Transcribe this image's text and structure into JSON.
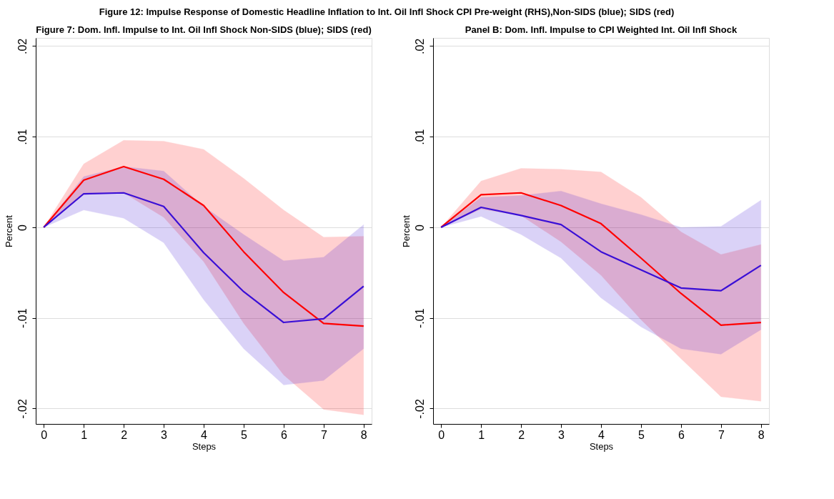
{
  "chart_data": [
    {
      "type": "line",
      "title": "Figure 7: Dom. Infl. Impulse to Int. Oil Infl Shock Non-SIDS (blue); SIDS (red)",
      "annotations": [
        "Figure 12: Impulse Response of Domestic Headline Inflation to Int. Oil Infl Shock CPI Pre-weight (RHS),Non-SIDS (blue); SIDS (red)"
      ],
      "xlabel": "Steps",
      "ylabel": "Percent",
      "x": [
        0,
        1,
        2,
        3,
        4,
        5,
        6,
        7,
        8
      ],
      "xlim": [
        -0.2,
        8.2
      ],
      "xticks": [
        0,
        1,
        2,
        3,
        4,
        5,
        6,
        7,
        8
      ],
      "ylim": [
        -0.0217,
        0.0209
      ],
      "yticks": [
        {
          "value": -0.02,
          "label": "-.02"
        },
        {
          "value": -0.01,
          "label": "-.01"
        },
        {
          "value": 0,
          "label": "0"
        },
        {
          "value": 0.01,
          "label": ".01"
        },
        {
          "value": 0.02,
          "label": ".02"
        }
      ],
      "grid": "y",
      "legend": false,
      "series": [
        {
          "color": "#ff0000",
          "values": [
            0,
            0.0052,
            0.0067,
            0.0053,
            0.0024,
            -0.0027,
            -0.0072,
            -0.0106,
            -0.0109
          ],
          "lower": [
            0,
            0.0036,
            0.0038,
            0.0011,
            -0.0038,
            -0.0106,
            -0.0163,
            -0.0201,
            -0.0207
          ],
          "upper": [
            0,
            0.007,
            0.0096,
            0.0095,
            0.0086,
            0.0054,
            0.0019,
            -0.0011,
            -0.001
          ]
        },
        {
          "color": "#3a0fd6",
          "values": [
            0,
            0.0037,
            0.0038,
            0.0023,
            -0.0028,
            -0.0071,
            -0.0105,
            -0.0101,
            -0.0065
          ],
          "lower": [
            0,
            0.0019,
            0.001,
            -0.0017,
            -0.008,
            -0.0134,
            -0.0174,
            -0.0169,
            -0.0134
          ],
          "upper": [
            0,
            0.0056,
            0.0067,
            0.0062,
            0.0023,
            -0.0008,
            -0.0037,
            -0.0033,
            0.0003
          ]
        }
      ]
    },
    {
      "type": "line",
      "title": "Panel B: Dom. Infl. Impulse to CPI Weighted Int. Oil Infl Shock",
      "xlabel": "Steps",
      "ylabel": "Percent",
      "x": [
        0,
        1,
        2,
        3,
        4,
        5,
        6,
        7,
        8
      ],
      "xlim": [
        -0.2,
        8.2
      ],
      "xticks": [
        0,
        1,
        2,
        3,
        4,
        5,
        6,
        7,
        8
      ],
      "ylim": [
        -0.0217,
        0.0209
      ],
      "yticks": [
        {
          "value": -0.02,
          "label": "-.02"
        },
        {
          "value": -0.01,
          "label": "-.01"
        },
        {
          "value": 0,
          "label": "0"
        },
        {
          "value": 0.01,
          "label": ".01"
        },
        {
          "value": 0.02,
          "label": ".02"
        }
      ],
      "grid": "y",
      "legend": false,
      "series": [
        {
          "color": "#ff0000",
          "values": [
            0,
            0.0036,
            0.0038,
            0.0024,
            0.0004,
            -0.0034,
            -0.0073,
            -0.0108,
            -0.0105
          ],
          "lower": [
            0,
            0.002,
            0.0013,
            -0.0016,
            -0.0053,
            -0.0102,
            -0.0145,
            -0.0187,
            -0.0192
          ],
          "upper": [
            0,
            0.0051,
            0.0065,
            0.0064,
            0.0061,
            0.0033,
            -0.0005,
            -0.003,
            -0.0019
          ]
        },
        {
          "color": "#3a0fd6",
          "values": [
            0,
            0.0022,
            0.0013,
            0.0003,
            -0.0027,
            -0.0047,
            -0.0067,
            -0.007,
            -0.0042
          ],
          "lower": [
            0,
            0.0012,
            -0.0008,
            -0.0034,
            -0.0078,
            -0.011,
            -0.0134,
            -0.014,
            -0.0113
          ],
          "upper": [
            0,
            0.0033,
            0.0035,
            0.004,
            0.0026,
            0.0014,
            0,
            0.0001,
            0.003
          ]
        }
      ]
    }
  ]
}
